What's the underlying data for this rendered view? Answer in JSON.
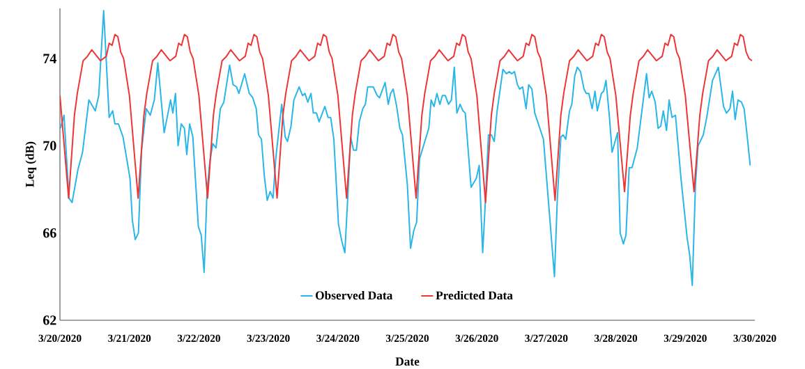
{
  "chart_data": {
    "type": "line",
    "xlabel": "Date",
    "ylabel": "Leq (dB)",
    "xlim": [
      "2020-03-20",
      "2020-03-30"
    ],
    "ylim": [
      62,
      76.3
    ],
    "xticks": [
      {
        "value": "2020-03-20",
        "label": "3/20/2020"
      },
      {
        "value": "2020-03-21",
        "label": "3/21/2020"
      },
      {
        "value": "2020-03-22",
        "label": "3/22/2020"
      },
      {
        "value": "2020-03-23",
        "label": "3/23/2020"
      },
      {
        "value": "2020-03-24",
        "label": "3/24/2020"
      },
      {
        "value": "2020-03-25",
        "label": "3/25/2020"
      },
      {
        "value": "2020-03-26",
        "label": "3/26/2020"
      },
      {
        "value": "2020-03-27",
        "label": "3/27/2020"
      },
      {
        "value": "2020-03-28",
        "label": "3/28/2020"
      },
      {
        "value": "2020-03-29",
        "label": "3/29/2020"
      },
      {
        "value": "2020-03-30",
        "label": "3/30/2020"
      }
    ],
    "yticks": [
      62,
      66,
      70,
      74
    ],
    "grid": false,
    "legend": "bottom",
    "series": [
      {
        "name": "Observed Data",
        "color": "#29b6e8",
        "x": [
          "2020-03-20T00:12",
          "2020-03-20T01:24",
          "2020-03-20T03:06",
          "2020-03-20T04:12",
          "2020-03-20T06:12",
          "2020-03-20T07:48",
          "2020-03-20T10:00",
          "2020-03-20T12:12",
          "2020-03-20T13:24",
          "2020-03-20T15:06",
          "2020-03-20T17:00",
          "2020-03-20T18:12",
          "2020-03-20T19:00",
          "2020-03-20T20:12",
          "2020-03-20T21:48",
          "2020-03-21T00:12",
          "2020-03-21T01:00",
          "2020-03-21T02:00",
          "2020-03-21T03:06",
          "2020-03-21T04:12",
          "2020-03-21T05:48",
          "2020-03-21T07:12",
          "2020-03-21T08:36",
          "2020-03-21T09:48",
          "2020-03-21T12:00",
          "2020-03-21T14:12",
          "2020-03-21T15:00",
          "2020-03-21T15:54",
          "2020-03-21T16:48",
          "2020-03-21T17:54",
          "2020-03-21T19:00",
          "2020-03-21T19:48",
          "2020-03-21T20:48",
          "2020-03-21T21:54",
          "2020-03-21T23:48",
          "2020-03-22T00:48",
          "2020-03-22T01:48",
          "2020-03-22T02:48",
          "2020-03-22T03:48",
          "2020-03-22T04:48",
          "2020-03-22T05:54",
          "2020-03-22T07:24",
          "2020-03-22T08:36",
          "2020-03-22T10:36",
          "2020-03-22T11:48",
          "2020-03-22T13:00",
          "2020-03-22T13:48",
          "2020-03-22T15:48",
          "2020-03-22T17:24",
          "2020-03-22T18:36",
          "2020-03-22T19:48",
          "2020-03-22T20:36",
          "2020-03-22T21:36",
          "2020-03-22T22:36",
          "2020-03-22T23:36",
          "2020-03-23T00:36",
          "2020-03-23T01:36",
          "2020-03-23T02:36",
          "2020-03-23T04:36",
          "2020-03-23T05:48",
          "2020-03-23T06:36",
          "2020-03-23T07:48",
          "2020-03-23T08:48",
          "2020-03-23T10:36",
          "2020-03-23T11:48",
          "2020-03-23T12:36",
          "2020-03-23T13:36",
          "2020-03-23T14:42",
          "2020-03-23T15:30",
          "2020-03-23T16:36",
          "2020-03-23T17:30",
          "2020-03-23T19:30",
          "2020-03-23T20:36",
          "2020-03-23T21:30",
          "2020-03-23T22:36",
          "2020-03-24T00:12",
          "2020-03-24T01:24",
          "2020-03-24T02:24",
          "2020-03-24T03:24",
          "2020-03-24T04:24",
          "2020-03-24T05:24",
          "2020-03-24T06:24",
          "2020-03-24T07:24",
          "2020-03-24T08:36",
          "2020-03-24T09:30",
          "2020-03-24T10:18",
          "2020-03-24T12:12",
          "2020-03-24T13:36",
          "2020-03-24T14:24",
          "2020-03-24T16:18",
          "2020-03-24T17:24",
          "2020-03-24T18:12",
          "2020-03-24T19:06",
          "2020-03-24T20:18",
          "2020-03-24T21:24",
          "2020-03-24T22:18",
          "2020-03-25T00:00",
          "2020-03-25T01:06",
          "2020-03-25T02:12",
          "2020-03-25T03:12",
          "2020-03-25T04:12",
          "2020-03-25T05:48",
          "2020-03-25T07:24",
          "2020-03-25T08:12",
          "2020-03-25T09:12",
          "2020-03-25T10:12",
          "2020-03-25T11:12",
          "2020-03-25T12:06",
          "2020-03-25T13:06",
          "2020-03-25T14:12",
          "2020-03-25T15:12",
          "2020-03-25T16:12",
          "2020-03-25T17:06",
          "2020-03-25T18:12",
          "2020-03-25T19:12",
          "2020-03-25T20:00",
          "2020-03-25T22:00",
          "2020-03-25T23:48",
          "2020-03-26T00:48",
          "2020-03-26T02:00",
          "2020-03-26T03:00",
          "2020-03-26T04:00",
          "2020-03-26T05:00",
          "2020-03-26T06:00",
          "2020-03-26T07:00",
          "2020-03-26T09:00",
          "2020-03-26T10:12",
          "2020-03-26T11:12",
          "2020-03-26T12:00",
          "2020-03-26T13:00",
          "2020-03-26T14:00",
          "2020-03-26T14:48",
          "2020-03-26T15:48",
          "2020-03-26T17:00",
          "2020-03-26T17:54",
          "2020-03-26T19:00",
          "2020-03-26T20:00",
          "2020-03-26T23:00",
          "2020-03-27T02:48",
          "2020-03-27T03:48",
          "2020-03-27T05:00",
          "2020-03-27T05:48",
          "2020-03-27T06:42",
          "2020-03-27T08:00",
          "2020-03-27T08:48",
          "2020-03-27T09:48",
          "2020-03-27T10:42",
          "2020-03-27T11:48",
          "2020-03-27T13:00",
          "2020-03-27T13:48",
          "2020-03-27T14:42",
          "2020-03-27T15:48",
          "2020-03-27T16:48",
          "2020-03-27T17:36",
          "2020-03-27T19:00",
          "2020-03-27T19:48",
          "2020-03-27T20:36",
          "2020-03-27T21:48",
          "2020-03-27T22:42",
          "2020-03-28T00:36",
          "2020-03-28T01:30",
          "2020-03-28T02:36",
          "2020-03-28T03:30",
          "2020-03-28T04:36",
          "2020-03-28T05:36",
          "2020-03-28T07:24",
          "2020-03-28T09:00",
          "2020-03-28T10:36",
          "2020-03-28T11:30",
          "2020-03-28T12:24",
          "2020-03-28T13:36",
          "2020-03-28T14:36",
          "2020-03-28T15:30",
          "2020-03-28T16:24",
          "2020-03-28T17:30",
          "2020-03-28T18:24",
          "2020-03-28T19:24",
          "2020-03-28T20:36",
          "2020-03-28T22:30",
          "2020-03-29T00:36",
          "2020-03-29T01:30",
          "2020-03-29T02:24",
          "2020-03-29T03:30",
          "2020-03-29T04:24",
          "2020-03-29T06:12",
          "2020-03-29T07:24",
          "2020-03-29T09:24",
          "2020-03-29T11:24",
          "2020-03-29T13:12",
          "2020-03-29T14:12",
          "2020-03-29T15:24",
          "2020-03-29T16:18",
          "2020-03-29T17:12",
          "2020-03-29T18:12",
          "2020-03-29T19:24",
          "2020-03-29T20:18",
          "2020-03-29T21:24",
          "2020-03-29T22:24"
        ],
        "values": [
          70.8,
          71.4,
          67.6,
          67.4,
          68.9,
          69.7,
          72.1,
          71.6,
          72.3,
          76.2,
          71.3,
          71.6,
          71.0,
          71.0,
          70.4,
          68.5,
          66.6,
          65.7,
          66.0,
          69.8,
          71.7,
          71.4,
          72.1,
          73.8,
          70.6,
          72.1,
          71.5,
          72.4,
          70.0,
          71.0,
          70.8,
          69.6,
          71.0,
          70.4,
          66.3,
          65.9,
          64.2,
          67.9,
          69.3,
          70.1,
          69.9,
          71.7,
          72.0,
          73.7,
          72.8,
          72.7,
          72.4,
          73.3,
          72.4,
          72.2,
          71.7,
          70.5,
          70.3,
          68.6,
          67.5,
          67.9,
          67.6,
          69.5,
          71.9,
          70.4,
          70.2,
          70.9,
          72.1,
          72.7,
          72.3,
          72.4,
          72.0,
          72.4,
          71.5,
          71.5,
          71.1,
          71.8,
          71.3,
          71.3,
          70.3,
          66.4,
          65.6,
          65.1,
          67.6,
          70.4,
          69.8,
          69.8,
          71.1,
          71.7,
          71.9,
          72.7,
          72.7,
          72.3,
          72.2,
          72.9,
          71.9,
          72.4,
          72.6,
          71.8,
          70.8,
          70.5,
          68.2,
          65.3,
          66.1,
          66.5,
          69.4,
          70.1,
          70.8,
          72.1,
          71.8,
          72.4,
          71.9,
          72.3,
          72.3,
          71.9,
          72.1,
          73.6,
          71.5,
          71.9,
          71.6,
          71.5,
          68.1,
          68.5,
          69.1,
          65.1,
          67.6,
          70.5,
          70.5,
          70.2,
          71.6,
          73.5,
          73.3,
          73.4,
          73.3,
          73.4,
          72.8,
          72.6,
          72.7,
          71.7,
          72.8,
          72.6,
          71.5,
          70.3,
          64.0,
          67.6,
          70.4,
          70.5,
          70.3,
          71.6,
          71.9,
          73.2,
          73.6,
          73.4,
          72.6,
          72.4,
          72.4,
          71.7,
          72.5,
          71.6,
          72.4,
          72.5,
          73.0,
          71.3,
          69.7,
          70.6,
          66.0,
          65.5,
          65.9,
          69.0,
          69.0,
          69.9,
          71.6,
          73.3,
          72.2,
          72.5,
          72.0,
          70.8,
          70.9,
          71.6,
          70.7,
          72.1,
          71.3,
          71.4,
          68.5,
          65.8,
          65.0,
          63.6,
          68.2,
          70.0,
          70.5,
          71.3,
          73.0,
          73.6,
          71.8,
          71.5,
          71.7,
          72.5,
          71.2,
          72.1,
          72.0,
          71.7,
          70.4,
          69.1
        ]
      },
      {
        "name": "Predicted Data",
        "color": "#ee3535",
        "x": [
          "2020-03-20T00:00",
          "2020-03-20T03:00",
          "2020-03-20T05:00",
          "2020-03-20T06:00",
          "2020-03-20T08:00",
          "2020-03-20T09:30",
          "2020-03-20T11:00",
          "2020-03-20T14:00",
          "2020-03-20T16:00",
          "2020-03-20T17:00",
          "2020-03-20T18:00",
          "2020-03-20T19:00",
          "2020-03-20T20:00",
          "2020-03-20T21:00",
          "2020-03-20T22:00",
          "2020-03-21T00:00",
          "2020-03-21T03:00",
          "2020-03-21T05:00",
          "2020-03-21T06:00",
          "2020-03-21T08:00",
          "2020-03-21T09:30",
          "2020-03-21T11:00",
          "2020-03-21T14:00",
          "2020-03-21T16:00",
          "2020-03-21T17:00",
          "2020-03-21T18:00",
          "2020-03-21T19:00",
          "2020-03-21T20:00",
          "2020-03-21T21:00",
          "2020-03-21T22:00",
          "2020-03-22T00:00",
          "2020-03-22T03:00",
          "2020-03-22T05:00",
          "2020-03-22T06:00",
          "2020-03-22T08:00",
          "2020-03-22T09:30",
          "2020-03-22T11:00",
          "2020-03-22T14:00",
          "2020-03-22T16:00",
          "2020-03-22T17:00",
          "2020-03-22T18:00",
          "2020-03-22T19:00",
          "2020-03-22T20:00",
          "2020-03-22T21:00",
          "2020-03-22T22:00",
          "2020-03-23T00:00",
          "2020-03-23T03:00",
          "2020-03-23T05:00",
          "2020-03-23T06:00",
          "2020-03-23T08:00",
          "2020-03-23T09:30",
          "2020-03-23T11:00",
          "2020-03-23T14:00",
          "2020-03-23T16:00",
          "2020-03-23T17:00",
          "2020-03-23T18:00",
          "2020-03-23T19:00",
          "2020-03-23T20:00",
          "2020-03-23T21:00",
          "2020-03-23T22:00",
          "2020-03-24T00:00",
          "2020-03-24T03:00",
          "2020-03-24T05:00",
          "2020-03-24T06:00",
          "2020-03-24T08:00",
          "2020-03-24T09:30",
          "2020-03-24T11:00",
          "2020-03-24T14:00",
          "2020-03-24T16:00",
          "2020-03-24T17:00",
          "2020-03-24T18:00",
          "2020-03-24T19:00",
          "2020-03-24T20:00",
          "2020-03-24T21:00",
          "2020-03-24T22:00",
          "2020-03-25T00:00",
          "2020-03-25T03:00",
          "2020-03-25T05:00",
          "2020-03-25T06:00",
          "2020-03-25T08:00",
          "2020-03-25T09:30",
          "2020-03-25T11:00",
          "2020-03-25T14:00",
          "2020-03-25T16:00",
          "2020-03-25T17:00",
          "2020-03-25T18:00",
          "2020-03-25T19:00",
          "2020-03-25T20:00",
          "2020-03-25T21:00",
          "2020-03-25T22:00",
          "2020-03-26T00:00",
          "2020-03-26T03:00",
          "2020-03-26T05:00",
          "2020-03-26T06:00",
          "2020-03-26T08:00",
          "2020-03-26T09:30",
          "2020-03-26T11:00",
          "2020-03-26T14:00",
          "2020-03-26T16:00",
          "2020-03-26T17:00",
          "2020-03-26T18:00",
          "2020-03-26T19:00",
          "2020-03-26T20:00",
          "2020-03-26T21:00",
          "2020-03-26T22:00",
          "2020-03-27T00:00",
          "2020-03-27T03:00",
          "2020-03-27T05:00",
          "2020-03-27T06:00",
          "2020-03-27T08:00",
          "2020-03-27T09:30",
          "2020-03-27T11:00",
          "2020-03-27T14:00",
          "2020-03-27T16:00",
          "2020-03-27T17:00",
          "2020-03-27T18:00",
          "2020-03-27T19:00",
          "2020-03-27T20:00",
          "2020-03-27T21:00",
          "2020-03-27T22:00",
          "2020-03-28T00:00",
          "2020-03-28T03:00",
          "2020-03-28T05:00",
          "2020-03-28T06:00",
          "2020-03-28T08:00",
          "2020-03-28T09:30",
          "2020-03-28T11:00",
          "2020-03-28T14:00",
          "2020-03-28T16:00",
          "2020-03-28T17:00",
          "2020-03-28T18:00",
          "2020-03-28T19:00",
          "2020-03-28T20:00",
          "2020-03-28T21:00",
          "2020-03-28T22:00",
          "2020-03-29T00:00",
          "2020-03-29T03:00",
          "2020-03-29T05:00",
          "2020-03-29T06:00",
          "2020-03-29T08:00",
          "2020-03-29T09:30",
          "2020-03-29T11:00",
          "2020-03-29T14:00",
          "2020-03-29T16:00",
          "2020-03-29T17:00",
          "2020-03-29T18:00",
          "2020-03-29T19:00",
          "2020-03-29T20:00",
          "2020-03-29T21:00",
          "2020-03-29T22:00",
          "2020-03-29T23:00"
        ],
        "values": [
          72.3,
          67.6,
          71.4,
          72.4,
          73.9,
          74.1,
          74.4,
          73.9,
          74.1,
          74.7,
          74.6,
          75.1,
          75.0,
          74.3,
          74.0,
          72.3,
          67.6,
          71.4,
          72.4,
          73.9,
          74.1,
          74.4,
          73.9,
          74.1,
          74.7,
          74.6,
          75.1,
          75.0,
          74.3,
          74.0,
          72.3,
          67.6,
          71.4,
          72.4,
          73.9,
          74.1,
          74.4,
          73.9,
          74.1,
          74.7,
          74.6,
          75.1,
          75.0,
          74.3,
          74.0,
          72.3,
          67.6,
          71.4,
          72.4,
          73.9,
          74.1,
          74.4,
          73.9,
          74.1,
          74.7,
          74.6,
          75.1,
          75.0,
          74.3,
          74.0,
          72.3,
          67.6,
          71.4,
          72.4,
          73.9,
          74.1,
          74.4,
          73.9,
          74.1,
          74.7,
          74.6,
          75.1,
          75.0,
          74.3,
          74.0,
          72.3,
          67.6,
          71.4,
          72.4,
          73.9,
          74.1,
          74.4,
          73.9,
          74.1,
          74.7,
          74.6,
          75.1,
          75.0,
          74.3,
          74.0,
          72.3,
          67.4,
          71.4,
          72.4,
          73.9,
          74.1,
          74.4,
          73.9,
          74.1,
          74.7,
          74.6,
          75.1,
          75.0,
          74.3,
          74.0,
          72.3,
          67.5,
          71.4,
          72.4,
          73.9,
          74.1,
          74.4,
          73.9,
          74.1,
          74.7,
          74.6,
          75.1,
          75.0,
          74.3,
          74.0,
          72.3,
          67.9,
          71.4,
          72.4,
          73.9,
          74.1,
          74.4,
          73.9,
          74.1,
          74.7,
          74.6,
          75.1,
          75.0,
          74.3,
          74.0,
          72.3,
          67.9,
          71.4,
          72.4,
          73.9,
          74.1,
          74.4,
          73.9,
          74.1,
          74.7,
          74.6,
          75.1,
          75.0,
          74.3,
          74.0,
          73.9
        ]
      }
    ]
  }
}
